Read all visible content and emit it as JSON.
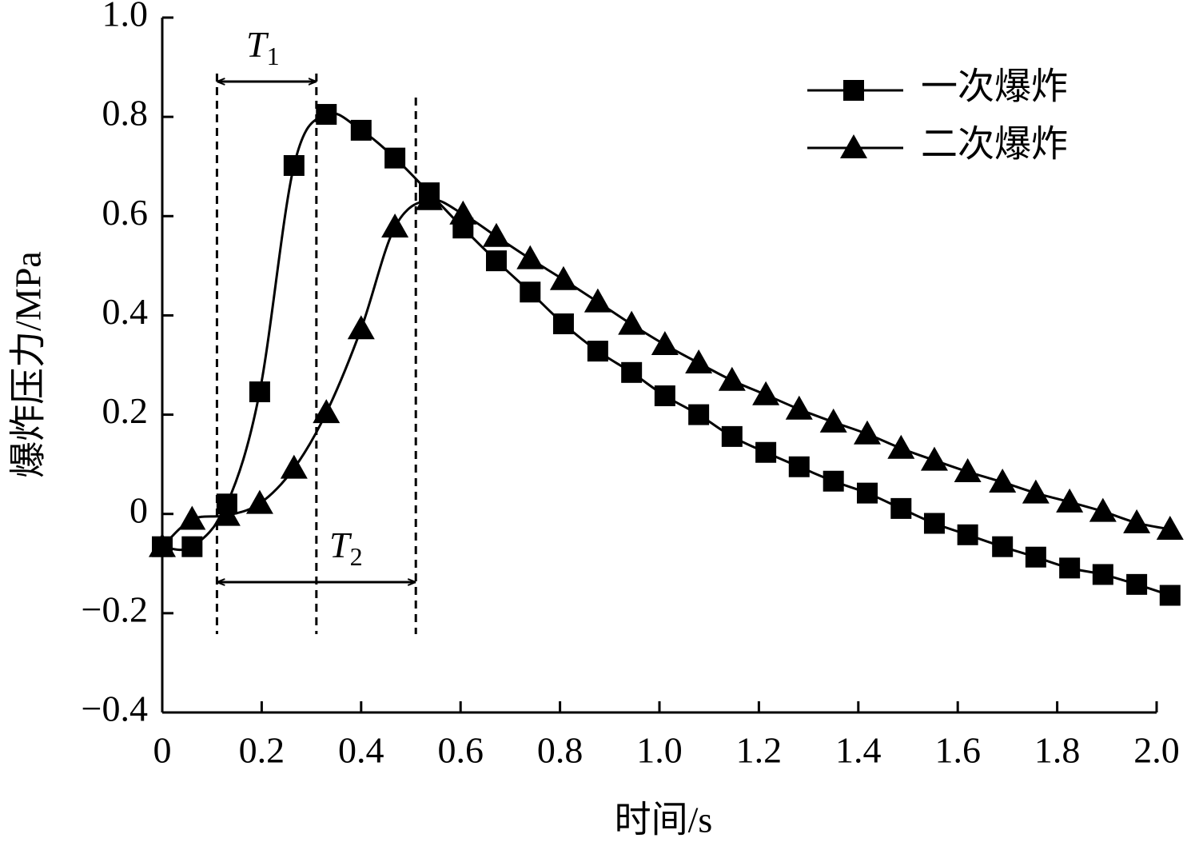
{
  "chart_data": {
    "type": "line",
    "x_label": "时间/s",
    "y_label": "爆炸压力/MPa",
    "xlim": [
      0,
      2.0
    ],
    "xticks": [
      0,
      0.2,
      0.4,
      0.6,
      0.8,
      {
        "value": 1,
        "label": "1.0"
      },
      1.2,
      1.4,
      1.6,
      1.8,
      {
        "value": 2,
        "label": "2.0"
      }
    ],
    "ylim": [
      -0.4,
      1.0
    ],
    "yticks": [
      {
        "value": -0.4,
        "label": "−0.4"
      },
      {
        "value": -0.2,
        "label": "−0.2"
      },
      0,
      0.2,
      0.4,
      0.6,
      0.8,
      {
        "value": 1,
        "label": "1.0"
      }
    ],
    "legend": "upper right",
    "series": [
      {
        "name": "一次爆炸",
        "color": "#000000",
        "marker": "square",
        "x": [
          0,
          0.06,
          0.13,
          0.196,
          0.265,
          0.33,
          0.4,
          0.468,
          0.537,
          0.605,
          0.672,
          0.74,
          0.807,
          0.876,
          0.944,
          1.011,
          1.079,
          1.146,
          1.214,
          1.281,
          1.35,
          1.418,
          1.486,
          1.553,
          1.62,
          1.69,
          1.757,
          1.825,
          1.892,
          1.96,
          2.027
        ],
        "values": [
          -0.066,
          -0.066,
          0.02,
          0.246,
          0.702,
          0.805,
          0.773,
          0.717,
          0.647,
          0.576,
          0.51,
          0.447,
          0.383,
          0.328,
          0.285,
          0.238,
          0.2,
          0.156,
          0.124,
          0.095,
          0.066,
          0.042,
          0.011,
          -0.019,
          -0.042,
          -0.066,
          -0.087,
          -0.109,
          -0.122,
          -0.142,
          -0.164
        ]
      },
      {
        "name": "二次爆炸",
        "color": "#000000",
        "marker": "triangle",
        "x": [
          0,
          0.06,
          0.13,
          0.196,
          0.265,
          0.33,
          0.4,
          0.468,
          0.537,
          0.605,
          0.672,
          0.74,
          0.807,
          0.876,
          0.944,
          1.011,
          1.079,
          1.146,
          1.214,
          1.281,
          1.35,
          1.418,
          1.486,
          1.553,
          1.62,
          1.69,
          1.757,
          1.825,
          1.892,
          1.96,
          2.027
        ],
        "values": [
          -0.066,
          -0.011,
          -0.003,
          0.021,
          0.092,
          0.204,
          0.373,
          0.578,
          0.633,
          0.604,
          0.559,
          0.514,
          0.472,
          0.427,
          0.382,
          0.341,
          0.304,
          0.269,
          0.24,
          0.211,
          0.185,
          0.161,
          0.132,
          0.108,
          0.085,
          0.064,
          0.042,
          0.024,
          0.005,
          -0.018,
          -0.031
        ]
      }
    ],
    "vlines": [
      0.11,
      0.31,
      0.51
    ],
    "annotations": [
      {
        "label": "T",
        "subscript": "1"
      },
      {
        "label": "T",
        "subscript": "2"
      }
    ]
  }
}
